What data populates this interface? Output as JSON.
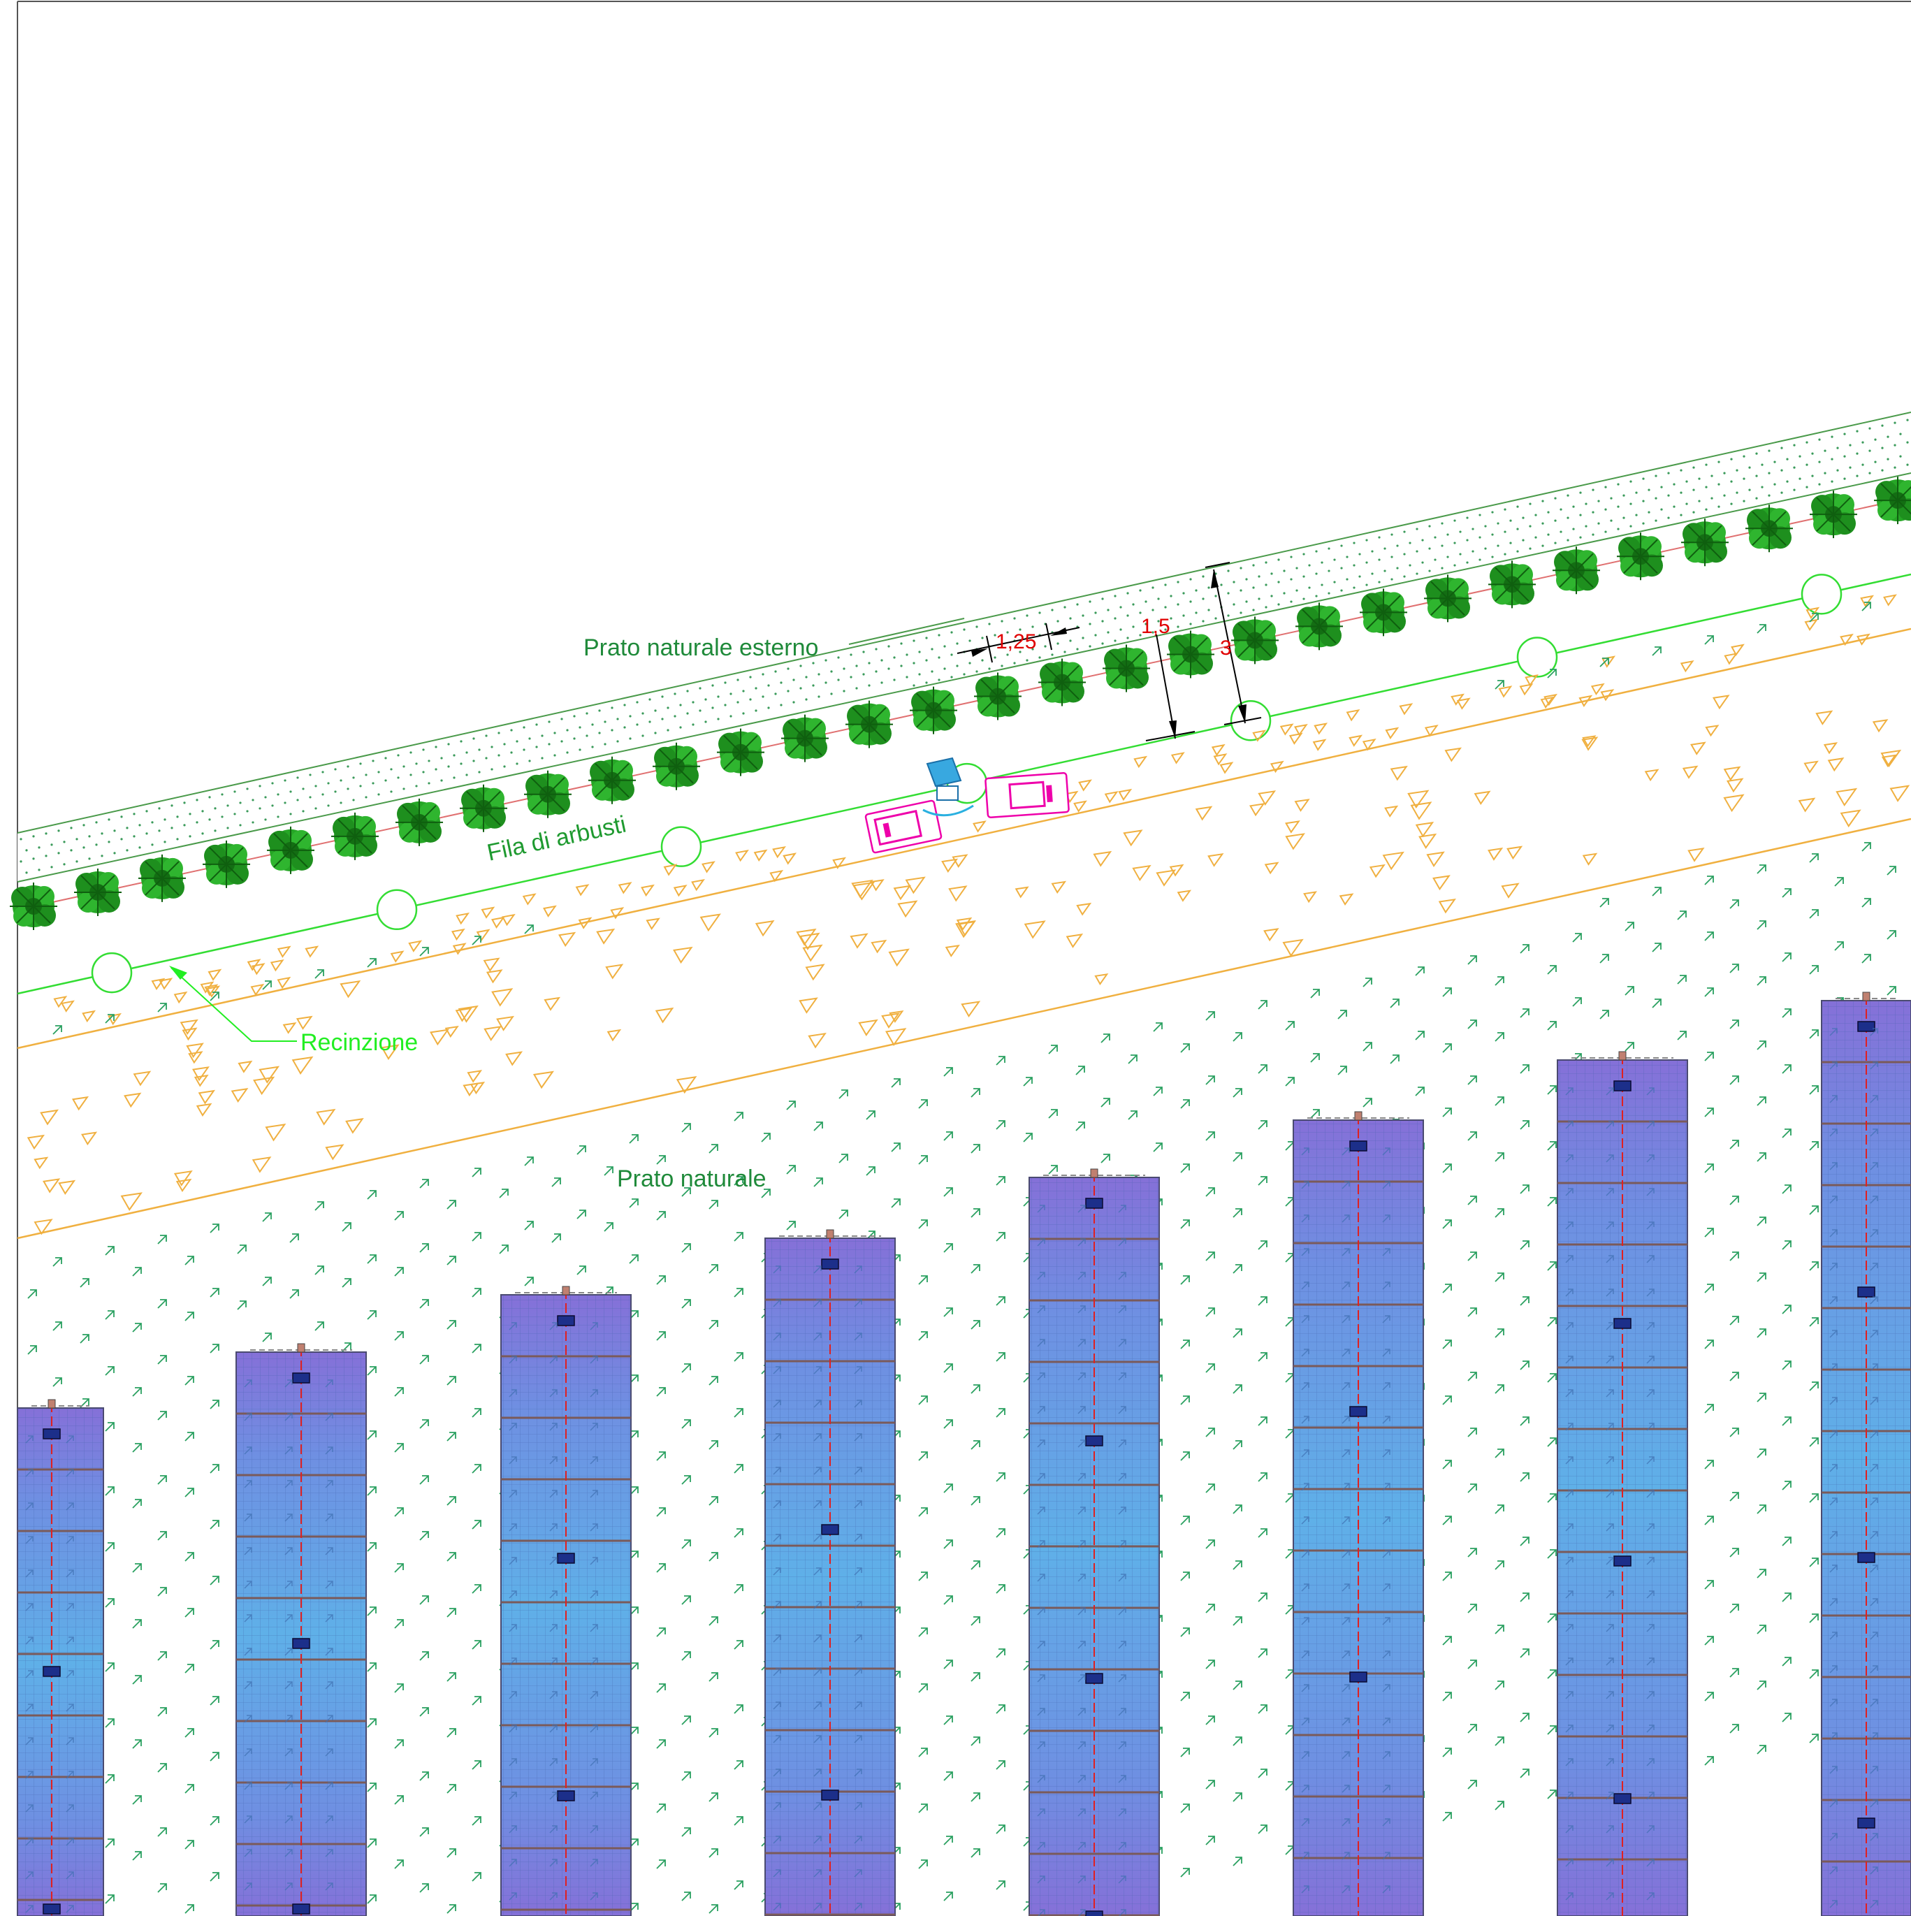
{
  "labels": {
    "outer_meadow": "Prato naturale esterno",
    "shrub_row": "Fila di arbusti",
    "fence": "Recinzione",
    "meadow": "Prato naturale"
  },
  "dimensions": {
    "spacing": "1,25",
    "shrub_band": "1,5",
    "total_band": "3"
  },
  "colors": {
    "outer_meadow_label": "#1f8a3a",
    "shrub_label": "#1f9a30",
    "fence_label": "#22ee22",
    "meadow_label": "#1f8a3a",
    "dimension_text": "#e00000",
    "shrub": "#1aa01a",
    "fence_line": "#33dd33",
    "path_line": "#f0b040",
    "meadow_symbol": "#2aa060",
    "panel_fill": "#6a8ee0",
    "panel_stripe": "#8a6fd8",
    "axis_line": "#e02020",
    "vehicle": "#ee00aa",
    "equipment": "#2ab0e0"
  },
  "icons": {
    "shrub": "shrub-icon",
    "fence_post": "fence-post-icon",
    "vehicle": "vehicle-icon",
    "equipment": "equipment-icon"
  }
}
